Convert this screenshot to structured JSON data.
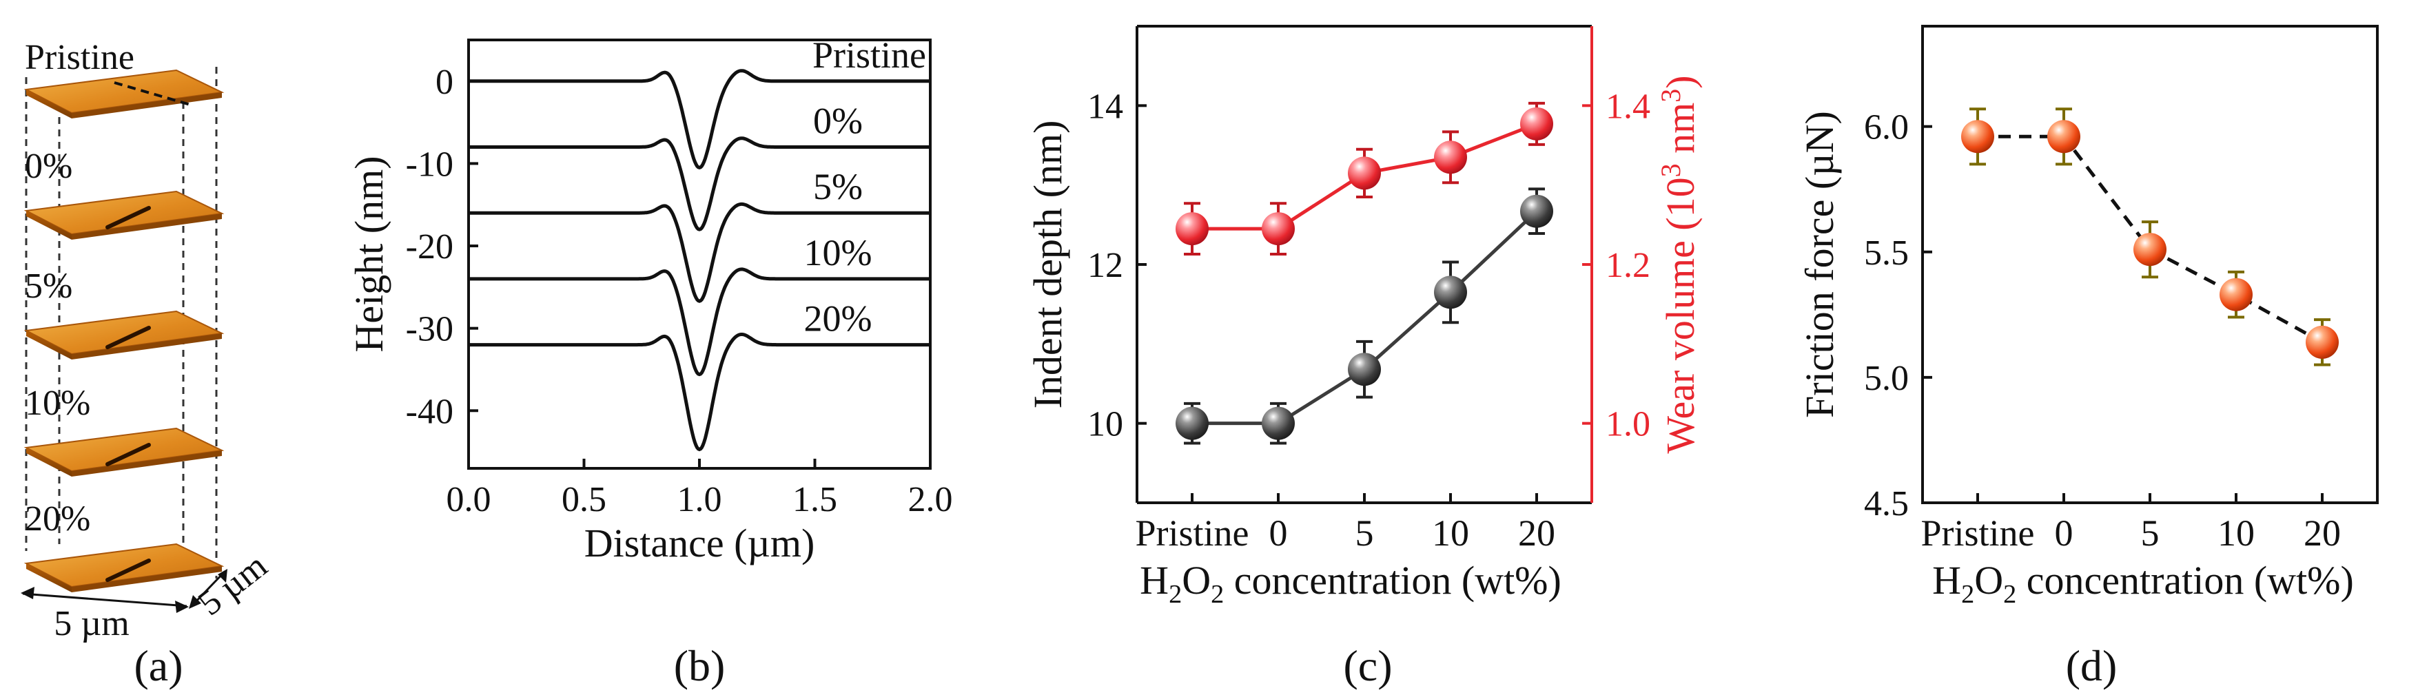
{
  "panel_labels": [
    "(a)",
    "(b)",
    "(c)",
    "(d)"
  ],
  "panel_a": {
    "layers": [
      "Pristine",
      "0%",
      "5%",
      "10%",
      "20%"
    ],
    "scale_x": "5 µm",
    "scale_y": "5 µm",
    "colors": {
      "surface": "#e08a1e",
      "surface_light": "#f0b040",
      "groove": "#2a1200"
    }
  },
  "chart_data": [
    {
      "panel": "b",
      "type": "line",
      "xlabel": "Distance (µm)",
      "ylabel": "Height (nm)",
      "xlim": [
        0.0,
        2.0
      ],
      "ylim": [
        -47,
        5
      ],
      "xticks": [
        0.0,
        0.5,
        1.0,
        1.5,
        2.0
      ],
      "xtick_labels": [
        "0.0",
        "0.5",
        "1.0",
        "1.5",
        "2.0"
      ],
      "yticks": [
        0,
        -10,
        -20,
        -30,
        -40
      ],
      "ytick_labels": [
        "0",
        "-10",
        "-20",
        "-30",
        "-40"
      ],
      "series": [
        {
          "name": "Pristine",
          "offset": 0,
          "depth": 10.5,
          "bump": 1.3
        },
        {
          "name": "0%",
          "offset": -8,
          "depth": 10.0,
          "bump": 1.1
        },
        {
          "name": "5%",
          "offset": -16,
          "depth": 10.7,
          "bump": 1.1
        },
        {
          "name": "10%",
          "offset": -24,
          "depth": 11.6,
          "bump": 1.2
        },
        {
          "name": "20%",
          "offset": -32,
          "depth": 12.7,
          "bump": 1.3
        }
      ],
      "grid": false
    },
    {
      "panel": "c",
      "type": "line",
      "categories": [
        "Pristine",
        "0",
        "5",
        "10",
        "20"
      ],
      "xlabel": "H2O2 concentration (wt%)",
      "ylabel": "Indent depth (nm)",
      "ylabel_right": "Wear volume (10³ nm³)",
      "ylim": [
        9.0,
        15.0
      ],
      "yticks": [
        10,
        12,
        14
      ],
      "ytick_labels": [
        "10",
        "12",
        "14"
      ],
      "ylim_right": [
        0.9,
        1.5
      ],
      "yticks_right": [
        1.0,
        1.2,
        1.4
      ],
      "ytick_labels_right": [
        "1.0",
        "1.2",
        "1.4"
      ],
      "series": [
        {
          "name": "Indent depth",
          "axis": "left",
          "color": "#3c3c3c",
          "values": [
            10.0,
            10.0,
            10.68,
            11.65,
            12.67
          ],
          "errors": [
            0.25,
            0.25,
            0.35,
            0.38,
            0.28
          ]
        },
        {
          "name": "Wear volume",
          "axis": "right",
          "color": "#e8262e",
          "values": [
            1.245,
            1.245,
            1.315,
            1.335,
            1.377
          ],
          "errors": [
            0.032,
            0.032,
            0.03,
            0.032,
            0.026
          ]
        }
      ],
      "grid": false
    },
    {
      "panel": "d",
      "type": "line",
      "categories": [
        "Pristine",
        "0",
        "5",
        "10",
        "20"
      ],
      "xlabel": "H2O2 concentration (wt%)",
      "ylabel": "Friction force (µN)",
      "ylim": [
        4.5,
        6.4
      ],
      "yticks": [
        4.5,
        5.0,
        5.5,
        6.0
      ],
      "ytick_labels": [
        "4.5",
        "5.0",
        "5.5",
        "6.0"
      ],
      "series": [
        {
          "name": "Friction force",
          "color": "#ee4a14",
          "values": [
            5.96,
            5.96,
            5.51,
            5.33,
            5.14
          ],
          "errors": [
            0.11,
            0.11,
            0.11,
            0.09,
            0.09
          ]
        }
      ],
      "grid": false
    }
  ],
  "colors": {
    "black": "#111111",
    "red": "#e8262e",
    "dark_ball": "#3c3c3c",
    "orange_ball": "#ee4a14",
    "olive_err": "#7a6a00"
  }
}
